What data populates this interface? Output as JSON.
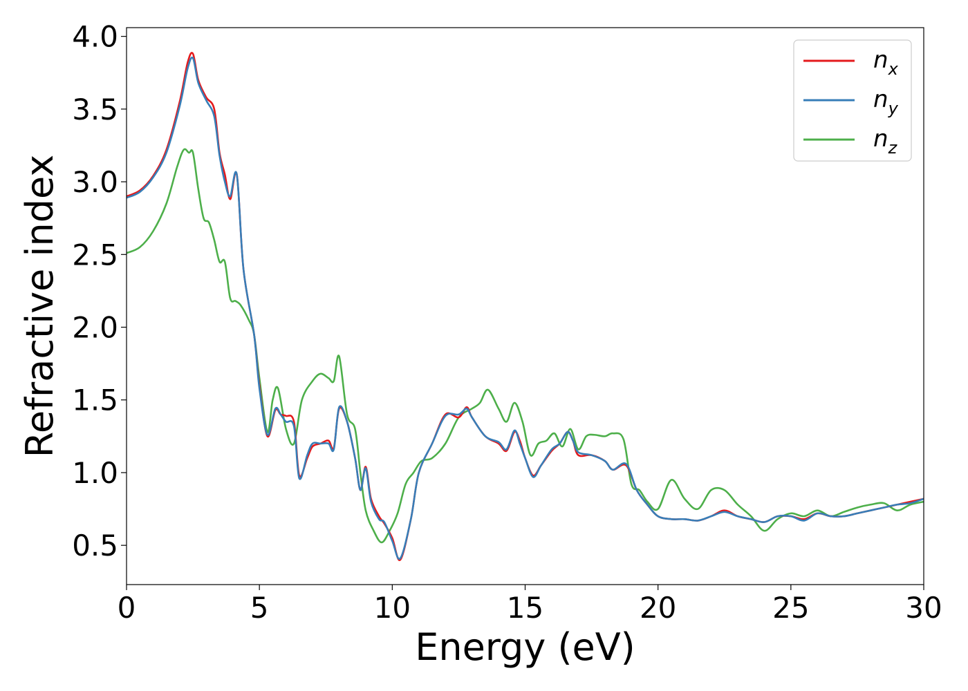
{
  "chart_data": {
    "type": "line",
    "title": "",
    "xlabel": "Energy (eV)",
    "ylabel": "Refractive index",
    "xlim": [
      0,
      30
    ],
    "ylim": [
      0.23,
      4.06
    ],
    "xticks": [
      0,
      5,
      10,
      15,
      20,
      25,
      30
    ],
    "xtick_labels": [
      "0",
      "5",
      "10",
      "15",
      "20",
      "25",
      "30"
    ],
    "yticks": [
      0.5,
      1.0,
      1.5,
      2.0,
      2.5,
      3.0,
      3.5,
      4.0
    ],
    "ytick_labels": [
      "0.5",
      "1.0",
      "1.5",
      "2.0",
      "2.5",
      "3.0",
      "3.5",
      "4.0"
    ],
    "grid": false,
    "legend_position": "top-right",
    "series": [
      {
        "name": "n_x",
        "label_main": "n",
        "label_sub": "x",
        "color": "#e41a1c",
        "x": [
          0,
          0.5,
          1.0,
          1.5,
          2.0,
          2.3,
          2.5,
          2.7,
          3.0,
          3.3,
          3.5,
          3.7,
          3.9,
          4.15,
          4.4,
          4.8,
          5.0,
          5.3,
          5.6,
          5.8,
          6.0,
          6.3,
          6.5,
          6.8,
          7.0,
          7.3,
          7.6,
          7.8,
          8.0,
          8.3,
          8.6,
          8.8,
          9.0,
          9.2,
          9.5,
          9.7,
          10.0,
          10.3,
          10.7,
          11.0,
          11.5,
          12.0,
          12.5,
          12.8,
          13.0,
          13.5,
          14.0,
          14.3,
          14.6,
          14.8,
          15.0,
          15.3,
          15.6,
          16.0,
          16.3,
          16.6,
          16.8,
          17.0,
          17.5,
          18.0,
          18.3,
          18.8,
          19.2,
          19.6,
          20.0,
          20.5,
          21.0,
          21.5,
          22.0,
          22.5,
          23.0,
          23.5,
          24.0,
          24.5,
          25.0,
          25.5,
          26.0,
          26.5,
          27.0,
          27.5,
          28.0,
          28.5,
          29.0,
          29.5,
          30.0
        ],
        "y": [
          2.9,
          2.94,
          3.04,
          3.22,
          3.55,
          3.82,
          3.88,
          3.7,
          3.58,
          3.5,
          3.2,
          3.05,
          2.88,
          3.05,
          2.4,
          1.95,
          1.6,
          1.25,
          1.43,
          1.4,
          1.39,
          1.35,
          0.98,
          1.1,
          1.18,
          1.2,
          1.22,
          1.17,
          1.44,
          1.35,
          1.1,
          0.88,
          1.04,
          0.82,
          0.7,
          0.65,
          0.55,
          0.4,
          0.68,
          1.0,
          1.2,
          1.4,
          1.38,
          1.45,
          1.38,
          1.25,
          1.2,
          1.15,
          1.28,
          1.22,
          1.1,
          0.98,
          1.05,
          1.15,
          1.2,
          1.28,
          1.22,
          1.12,
          1.12,
          1.08,
          1.02,
          1.05,
          0.88,
          0.78,
          0.7,
          0.68,
          0.68,
          0.67,
          0.7,
          0.74,
          0.7,
          0.68,
          0.66,
          0.7,
          0.7,
          0.68,
          0.72,
          0.7,
          0.7,
          0.72,
          0.74,
          0.76,
          0.78,
          0.8,
          0.82
        ]
      },
      {
        "name": "n_y",
        "label_main": "n",
        "label_sub": "y",
        "color": "#377eb8",
        "x": [
          0,
          0.5,
          1.0,
          1.5,
          2.0,
          2.3,
          2.5,
          2.7,
          3.0,
          3.3,
          3.5,
          3.7,
          3.9,
          4.15,
          4.4,
          4.8,
          5.0,
          5.3,
          5.6,
          5.8,
          6.0,
          6.3,
          6.5,
          6.8,
          7.0,
          7.3,
          7.6,
          7.8,
          8.0,
          8.3,
          8.6,
          8.8,
          9.0,
          9.2,
          9.5,
          9.7,
          10.0,
          10.3,
          10.7,
          11.0,
          11.5,
          12.0,
          12.5,
          12.8,
          13.0,
          13.5,
          14.0,
          14.3,
          14.6,
          14.8,
          15.0,
          15.3,
          15.6,
          16.0,
          16.3,
          16.6,
          16.8,
          17.0,
          17.5,
          18.0,
          18.3,
          18.8,
          19.2,
          19.6,
          20.0,
          20.5,
          21.0,
          21.5,
          22.0,
          22.5,
          23.0,
          23.5,
          24.0,
          24.5,
          25.0,
          25.5,
          26.0,
          26.5,
          27.0,
          27.5,
          28.0,
          28.5,
          29.0,
          29.5,
          30.0
        ],
        "y": [
          2.89,
          2.93,
          3.03,
          3.2,
          3.52,
          3.78,
          3.85,
          3.68,
          3.56,
          3.45,
          3.18,
          3.0,
          2.9,
          3.05,
          2.4,
          1.95,
          1.58,
          1.26,
          1.44,
          1.4,
          1.35,
          1.32,
          0.96,
          1.12,
          1.2,
          1.2,
          1.2,
          1.16,
          1.45,
          1.35,
          1.1,
          0.88,
          1.03,
          0.8,
          0.68,
          0.66,
          0.53,
          0.41,
          0.68,
          1.0,
          1.2,
          1.39,
          1.4,
          1.44,
          1.38,
          1.25,
          1.21,
          1.16,
          1.29,
          1.2,
          1.1,
          0.97,
          1.05,
          1.16,
          1.2,
          1.28,
          1.22,
          1.14,
          1.12,
          1.08,
          1.02,
          1.06,
          0.88,
          0.78,
          0.7,
          0.68,
          0.68,
          0.67,
          0.7,
          0.73,
          0.7,
          0.68,
          0.66,
          0.7,
          0.7,
          0.67,
          0.72,
          0.7,
          0.7,
          0.72,
          0.74,
          0.76,
          0.78,
          0.79,
          0.82
        ]
      },
      {
        "name": "n_z",
        "label_main": "n",
        "label_sub": "z",
        "color": "#4daf4a",
        "x": [
          0,
          0.5,
          1.0,
          1.5,
          1.9,
          2.15,
          2.35,
          2.5,
          2.7,
          2.9,
          3.1,
          3.3,
          3.5,
          3.7,
          3.9,
          4.1,
          4.3,
          4.6,
          4.8,
          5.0,
          5.3,
          5.5,
          5.7,
          6.0,
          6.3,
          6.6,
          7.0,
          7.3,
          7.6,
          7.8,
          8.0,
          8.3,
          8.6,
          8.8,
          9.0,
          9.3,
          9.6,
          9.9,
          10.2,
          10.5,
          10.8,
          11.1,
          11.5,
          12.0,
          12.5,
          13.0,
          13.3,
          13.6,
          14.0,
          14.3,
          14.6,
          14.9,
          15.2,
          15.5,
          15.8,
          16.1,
          16.4,
          16.7,
          17.0,
          17.3,
          17.6,
          18.0,
          18.3,
          18.7,
          19.0,
          19.3,
          19.6,
          20.0,
          20.5,
          21.0,
          21.5,
          22.0,
          22.5,
          23.0,
          23.5,
          24.0,
          24.5,
          25.0,
          25.5,
          26.0,
          26.5,
          27.0,
          27.5,
          28.0,
          28.5,
          29.0,
          29.5,
          30.0
        ],
        "y": [
          2.51,
          2.55,
          2.66,
          2.85,
          3.1,
          3.22,
          3.2,
          3.2,
          2.95,
          2.75,
          2.72,
          2.6,
          2.45,
          2.45,
          2.2,
          2.18,
          2.15,
          2.05,
          1.95,
          1.65,
          1.28,
          1.5,
          1.58,
          1.3,
          1.2,
          1.5,
          1.63,
          1.68,
          1.65,
          1.63,
          1.8,
          1.4,
          1.3,
          1.0,
          0.74,
          0.6,
          0.52,
          0.6,
          0.72,
          0.92,
          1.0,
          1.08,
          1.1,
          1.2,
          1.38,
          1.44,
          1.48,
          1.57,
          1.44,
          1.35,
          1.48,
          1.35,
          1.12,
          1.2,
          1.22,
          1.27,
          1.18,
          1.3,
          1.16,
          1.25,
          1.26,
          1.25,
          1.27,
          1.23,
          0.92,
          0.88,
          0.8,
          0.75,
          0.95,
          0.82,
          0.75,
          0.88,
          0.88,
          0.78,
          0.7,
          0.6,
          0.68,
          0.72,
          0.7,
          0.74,
          0.7,
          0.73,
          0.76,
          0.78,
          0.79,
          0.74,
          0.78,
          0.8
        ]
      }
    ]
  }
}
